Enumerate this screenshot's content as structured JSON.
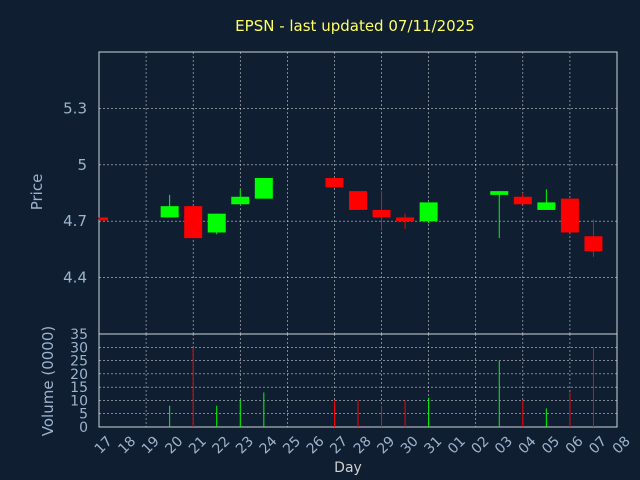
{
  "chart_data": {
    "type": "candlestick",
    "title": "EPSN - last updated 07/11/2025",
    "price_ylabel": "Price",
    "volume_ylabel": "Volume (0000)",
    "xlabel": "Day",
    "price_ticks": [
      4.4,
      4.7,
      5,
      5.3
    ],
    "price_tick_labels": [
      "4.4",
      "4.7",
      "5",
      "5.3"
    ],
    "price_ylim": [
      4.1,
      5.6
    ],
    "volume_ticks": [
      0,
      5,
      10,
      15,
      20,
      25,
      30,
      35
    ],
    "volume_ylim": [
      0,
      35
    ],
    "x_labels": [
      "17",
      "18",
      "19",
      "20",
      "21",
      "22",
      "23",
      "24",
      "25",
      "26",
      "27",
      "28",
      "29",
      "30",
      "31",
      "01",
      "02",
      "03",
      "04",
      "05",
      "06",
      "07",
      "08"
    ],
    "candles": [
      {
        "day": "17",
        "open": 4.72,
        "close": 4.71,
        "high": 4.72,
        "low": 4.71,
        "volume": 0
      },
      {
        "day": "20",
        "open": 4.72,
        "close": 4.78,
        "high": 4.84,
        "low": 4.72,
        "volume": 8
      },
      {
        "day": "21",
        "open": 4.78,
        "close": 4.61,
        "high": 4.78,
        "low": 4.61,
        "volume": 30
      },
      {
        "day": "22",
        "open": 4.64,
        "close": 4.74,
        "high": 4.74,
        "low": 4.63,
        "volume": 8
      },
      {
        "day": "23",
        "open": 4.79,
        "close": 4.83,
        "high": 4.87,
        "low": 4.79,
        "volume": 10
      },
      {
        "day": "24",
        "open": 4.82,
        "close": 4.93,
        "high": 4.93,
        "low": 4.82,
        "volume": 13
      },
      {
        "day": "27",
        "open": 4.93,
        "close": 4.88,
        "high": 4.93,
        "low": 4.88,
        "volume": 10
      },
      {
        "day": "28",
        "open": 4.86,
        "close": 4.76,
        "high": 4.86,
        "low": 4.76,
        "volume": 10
      },
      {
        "day": "29",
        "open": 4.76,
        "close": 4.72,
        "high": 4.86,
        "low": 4.65,
        "volume": 8
      },
      {
        "day": "30",
        "open": 4.72,
        "close": 4.7,
        "high": 4.74,
        "low": 4.66,
        "volume": 10
      },
      {
        "day": "31",
        "open": 4.7,
        "close": 4.8,
        "high": 4.8,
        "low": 4.69,
        "volume": 11
      },
      {
        "day": "03",
        "open": 4.84,
        "close": 4.86,
        "high": 4.86,
        "low": 4.61,
        "volume": 25
      },
      {
        "day": "04",
        "open": 4.83,
        "close": 4.79,
        "high": 4.85,
        "low": 4.79,
        "volume": 10
      },
      {
        "day": "05",
        "open": 4.76,
        "close": 4.8,
        "high": 4.87,
        "low": 4.76,
        "volume": 7
      },
      {
        "day": "06",
        "open": 4.82,
        "close": 4.64,
        "high": 4.82,
        "low": 4.64,
        "volume": 13
      },
      {
        "day": "07",
        "open": 4.62,
        "close": 4.54,
        "high": 4.71,
        "low": 4.51,
        "volume": 30
      }
    ]
  },
  "colors": {
    "background": "#0f1e30",
    "up": "#00ff00",
    "down": "#ff0000",
    "grid": "#ffffff",
    "title": "#ffff66",
    "tick": "#9db4cc"
  }
}
